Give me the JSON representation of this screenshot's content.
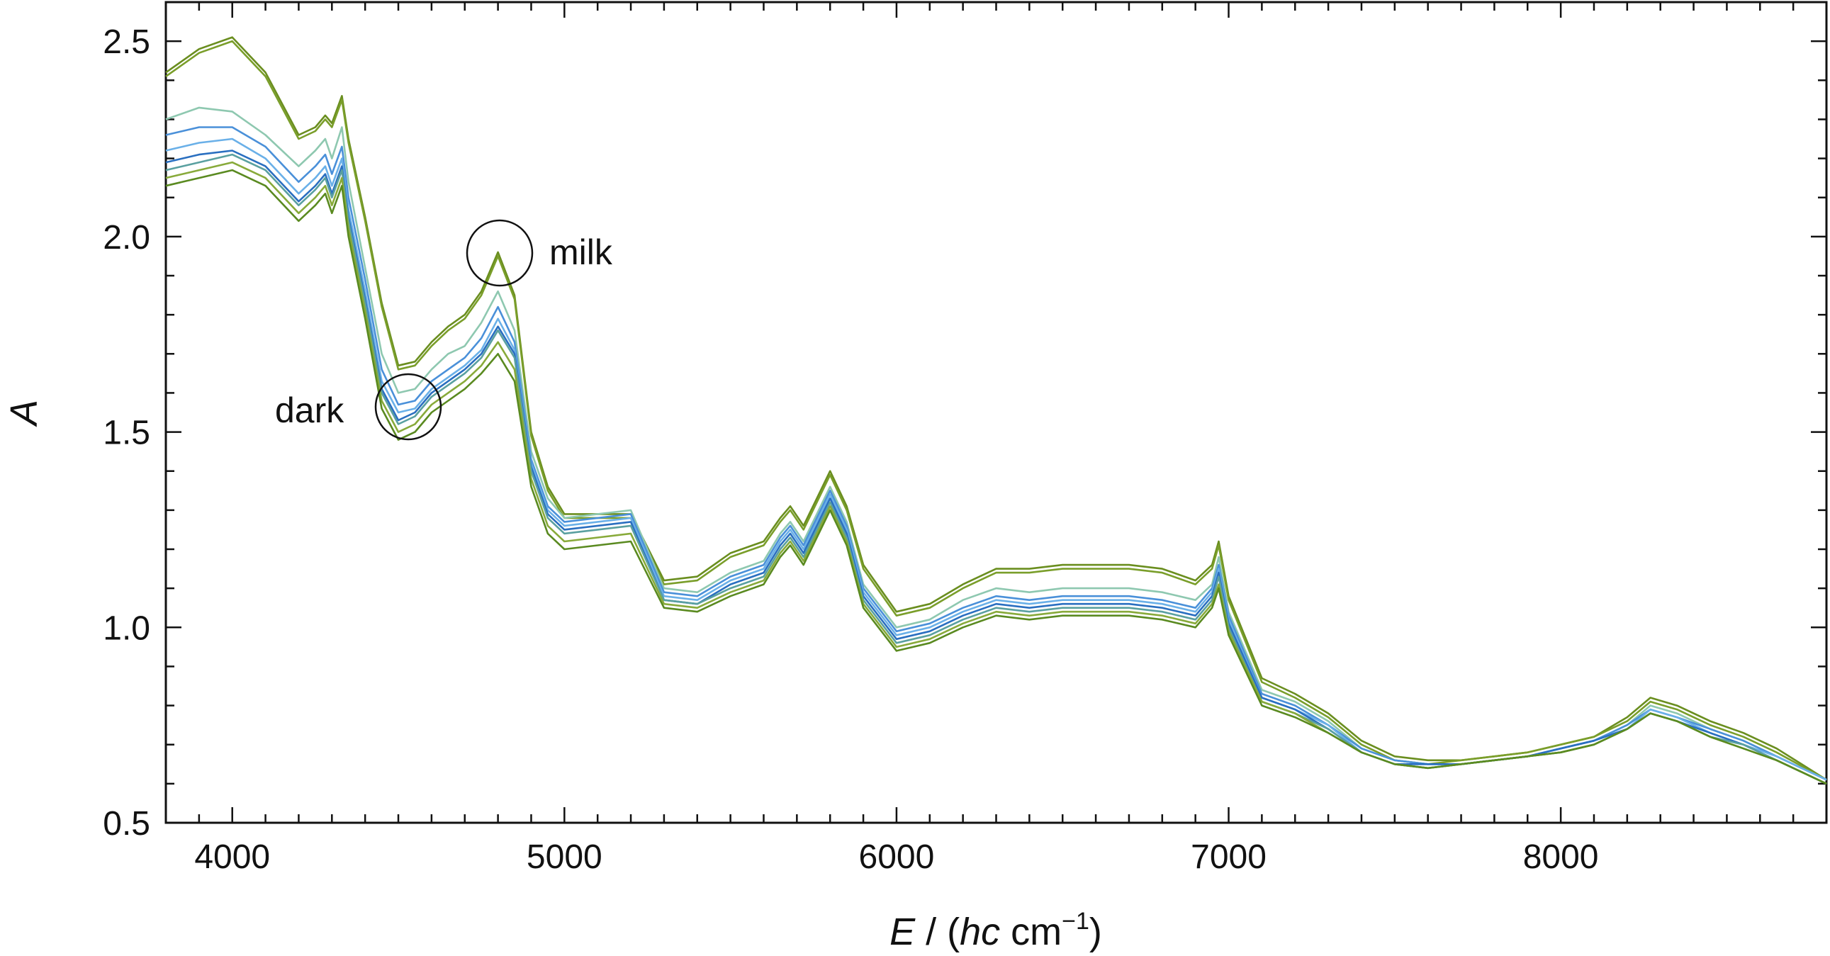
{
  "chart_data": {
    "type": "line",
    "title": "",
    "xlabel": {
      "var": "E",
      "sep": " / (",
      "unit_italic": "hc",
      "unit_rest": " cm",
      "sup": "−1",
      "close": ")"
    },
    "ylabel": "A",
    "xlim": [
      3800,
      8800
    ],
    "ylim": [
      0.5,
      2.6
    ],
    "xticks": [
      4000,
      5000,
      6000,
      7000,
      8000
    ],
    "xtick_labels": [
      "4000",
      "5000",
      "6000",
      "7000",
      "8000"
    ],
    "yticks": [
      0.5,
      1.0,
      1.5,
      2.0,
      2.5
    ],
    "ytick_labels": [
      "0.5",
      "1.0",
      "1.5",
      "2.0",
      "2.5"
    ],
    "grid": false,
    "legend": "none",
    "annotations": [
      {
        "text": "milk",
        "x": 4800,
        "y": 1.95
      },
      {
        "text": "dark",
        "x": 4530,
        "y": 1.56
      }
    ],
    "x": [
      3800,
      3900,
      4000,
      4100,
      4200,
      4250,
      4280,
      4300,
      4330,
      4350,
      4400,
      4450,
      4500,
      4550,
      4600,
      4650,
      4700,
      4750,
      4800,
      4850,
      4900,
      4950,
      5000,
      5100,
      5200,
      5300,
      5400,
      5500,
      5600,
      5650,
      5680,
      5720,
      5760,
      5800,
      5850,
      5900,
      6000,
      6100,
      6200,
      6300,
      6400,
      6500,
      6600,
      6700,
      6800,
      6900,
      6950,
      6970,
      7000,
      7100,
      7200,
      7300,
      7400,
      7500,
      7600,
      7700,
      7800,
      7900,
      8000,
      8100,
      8200,
      8270,
      8350,
      8450,
      8550,
      8650,
      8800
    ],
    "series": [
      {
        "color": "#6a8e1f",
        "values": [
          2.42,
          2.48,
          2.51,
          2.42,
          2.26,
          2.28,
          2.31,
          2.29,
          2.36,
          2.25,
          2.05,
          1.83,
          1.67,
          1.68,
          1.73,
          1.77,
          1.8,
          1.86,
          1.96,
          1.85,
          1.5,
          1.36,
          1.29,
          1.29,
          1.29,
          1.12,
          1.13,
          1.19,
          1.22,
          1.28,
          1.31,
          1.26,
          1.33,
          1.4,
          1.31,
          1.16,
          1.04,
          1.06,
          1.11,
          1.15,
          1.15,
          1.16,
          1.16,
          1.16,
          1.15,
          1.12,
          1.16,
          1.22,
          1.08,
          0.87,
          0.83,
          0.78,
          0.71,
          0.67,
          0.66,
          0.66,
          0.67,
          0.68,
          0.7,
          0.72,
          0.77,
          0.82,
          0.8,
          0.76,
          0.73,
          0.69,
          0.61
        ]
      },
      {
        "color": "#7a9e2a",
        "values": [
          2.41,
          2.47,
          2.5,
          2.41,
          2.25,
          2.27,
          2.3,
          2.28,
          2.35,
          2.24,
          2.04,
          1.82,
          1.66,
          1.67,
          1.72,
          1.76,
          1.79,
          1.85,
          1.95,
          1.84,
          1.49,
          1.35,
          1.28,
          1.28,
          1.28,
          1.11,
          1.12,
          1.18,
          1.21,
          1.27,
          1.3,
          1.25,
          1.32,
          1.39,
          1.3,
          1.15,
          1.03,
          1.05,
          1.1,
          1.14,
          1.14,
          1.15,
          1.15,
          1.15,
          1.14,
          1.11,
          1.15,
          1.21,
          1.07,
          0.86,
          0.82,
          0.77,
          0.7,
          0.66,
          0.65,
          0.66,
          0.67,
          0.68,
          0.7,
          0.72,
          0.76,
          0.81,
          0.79,
          0.75,
          0.72,
          0.68,
          0.61
        ]
      },
      {
        "color": "#8ec8b0",
        "values": [
          2.3,
          2.33,
          2.32,
          2.26,
          2.18,
          2.22,
          2.25,
          2.2,
          2.28,
          2.14,
          1.92,
          1.7,
          1.6,
          1.61,
          1.66,
          1.7,
          1.72,
          1.78,
          1.86,
          1.76,
          1.45,
          1.33,
          1.28,
          1.29,
          1.3,
          1.1,
          1.09,
          1.14,
          1.17,
          1.24,
          1.27,
          1.22,
          1.29,
          1.36,
          1.27,
          1.11,
          1.0,
          1.02,
          1.07,
          1.1,
          1.09,
          1.1,
          1.1,
          1.1,
          1.09,
          1.07,
          1.11,
          1.18,
          1.04,
          0.84,
          0.81,
          0.76,
          0.69,
          0.66,
          0.65,
          0.65,
          0.66,
          0.67,
          0.69,
          0.71,
          0.75,
          0.8,
          0.78,
          0.74,
          0.71,
          0.67,
          0.61
        ]
      },
      {
        "color": "#4a90d9",
        "values": [
          2.26,
          2.28,
          2.28,
          2.23,
          2.14,
          2.18,
          2.21,
          2.16,
          2.23,
          2.1,
          1.89,
          1.66,
          1.57,
          1.58,
          1.63,
          1.66,
          1.69,
          1.74,
          1.82,
          1.73,
          1.43,
          1.31,
          1.27,
          1.28,
          1.29,
          1.09,
          1.08,
          1.13,
          1.16,
          1.23,
          1.26,
          1.21,
          1.28,
          1.35,
          1.26,
          1.1,
          0.99,
          1.01,
          1.05,
          1.08,
          1.07,
          1.08,
          1.08,
          1.08,
          1.07,
          1.05,
          1.1,
          1.16,
          1.03,
          0.83,
          0.8,
          0.75,
          0.69,
          0.66,
          0.65,
          0.65,
          0.66,
          0.67,
          0.69,
          0.71,
          0.75,
          0.79,
          0.77,
          0.74,
          0.71,
          0.67,
          0.61
        ]
      },
      {
        "color": "#6ab0e8",
        "values": [
          2.22,
          2.24,
          2.25,
          2.2,
          2.11,
          2.15,
          2.18,
          2.13,
          2.2,
          2.07,
          1.86,
          1.63,
          1.55,
          1.56,
          1.61,
          1.64,
          1.67,
          1.71,
          1.79,
          1.71,
          1.42,
          1.3,
          1.26,
          1.27,
          1.28,
          1.08,
          1.07,
          1.12,
          1.15,
          1.22,
          1.25,
          1.2,
          1.27,
          1.34,
          1.25,
          1.09,
          0.98,
          1.0,
          1.04,
          1.07,
          1.06,
          1.07,
          1.07,
          1.07,
          1.06,
          1.04,
          1.09,
          1.15,
          1.02,
          0.82,
          0.79,
          0.75,
          0.68,
          0.65,
          0.65,
          0.65,
          0.66,
          0.67,
          0.69,
          0.71,
          0.74,
          0.79,
          0.77,
          0.73,
          0.7,
          0.67,
          0.61
        ]
      },
      {
        "color": "#2a6fc0",
        "values": [
          2.19,
          2.21,
          2.22,
          2.18,
          2.09,
          2.13,
          2.16,
          2.11,
          2.18,
          2.05,
          1.84,
          1.61,
          1.53,
          1.55,
          1.6,
          1.63,
          1.66,
          1.7,
          1.77,
          1.7,
          1.41,
          1.29,
          1.25,
          1.26,
          1.27,
          1.07,
          1.06,
          1.11,
          1.14,
          1.21,
          1.24,
          1.19,
          1.26,
          1.33,
          1.24,
          1.08,
          0.97,
          0.99,
          1.03,
          1.06,
          1.05,
          1.06,
          1.06,
          1.06,
          1.05,
          1.03,
          1.08,
          1.14,
          1.01,
          0.82,
          0.79,
          0.74,
          0.68,
          0.65,
          0.65,
          0.65,
          0.66,
          0.67,
          0.69,
          0.71,
          0.74,
          0.78,
          0.76,
          0.73,
          0.7,
          0.66,
          0.6
        ]
      },
      {
        "color": "#5aa0a0",
        "values": [
          2.17,
          2.19,
          2.21,
          2.17,
          2.08,
          2.12,
          2.15,
          2.1,
          2.17,
          2.04,
          1.83,
          1.6,
          1.52,
          1.54,
          1.59,
          1.62,
          1.65,
          1.69,
          1.76,
          1.69,
          1.4,
          1.28,
          1.24,
          1.25,
          1.26,
          1.07,
          1.06,
          1.1,
          1.13,
          1.2,
          1.23,
          1.18,
          1.25,
          1.32,
          1.23,
          1.07,
          0.96,
          0.98,
          1.02,
          1.05,
          1.04,
          1.05,
          1.05,
          1.05,
          1.04,
          1.02,
          1.07,
          1.13,
          1.0,
          0.81,
          0.78,
          0.74,
          0.68,
          0.65,
          0.64,
          0.65,
          0.66,
          0.67,
          0.68,
          0.7,
          0.74,
          0.78,
          0.76,
          0.72,
          0.7,
          0.66,
          0.6
        ]
      },
      {
        "color": "#88aa3a",
        "values": [
          2.15,
          2.17,
          2.19,
          2.15,
          2.06,
          2.1,
          2.13,
          2.08,
          2.15,
          2.02,
          1.81,
          1.58,
          1.5,
          1.52,
          1.57,
          1.6,
          1.63,
          1.67,
          1.73,
          1.66,
          1.38,
          1.26,
          1.22,
          1.23,
          1.24,
          1.06,
          1.05,
          1.09,
          1.12,
          1.19,
          1.22,
          1.17,
          1.24,
          1.31,
          1.22,
          1.06,
          0.95,
          0.97,
          1.01,
          1.04,
          1.03,
          1.04,
          1.04,
          1.04,
          1.03,
          1.01,
          1.06,
          1.11,
          0.99,
          0.81,
          0.78,
          0.73,
          0.68,
          0.65,
          0.64,
          0.65,
          0.66,
          0.67,
          0.68,
          0.7,
          0.74,
          0.78,
          0.76,
          0.72,
          0.69,
          0.66,
          0.6
        ]
      },
      {
        "color": "#5a8a20",
        "values": [
          2.13,
          2.15,
          2.17,
          2.13,
          2.04,
          2.08,
          2.11,
          2.06,
          2.13,
          2.0,
          1.79,
          1.56,
          1.48,
          1.5,
          1.55,
          1.58,
          1.61,
          1.65,
          1.7,
          1.63,
          1.36,
          1.24,
          1.2,
          1.21,
          1.22,
          1.05,
          1.04,
          1.08,
          1.11,
          1.18,
          1.21,
          1.16,
          1.23,
          1.3,
          1.21,
          1.05,
          0.94,
          0.96,
          1.0,
          1.03,
          1.02,
          1.03,
          1.03,
          1.03,
          1.02,
          1.0,
          1.05,
          1.1,
          0.98,
          0.8,
          0.77,
          0.73,
          0.68,
          0.65,
          0.64,
          0.65,
          0.66,
          0.67,
          0.68,
          0.7,
          0.74,
          0.78,
          0.76,
          0.72,
          0.69,
          0.66,
          0.6
        ]
      }
    ]
  }
}
